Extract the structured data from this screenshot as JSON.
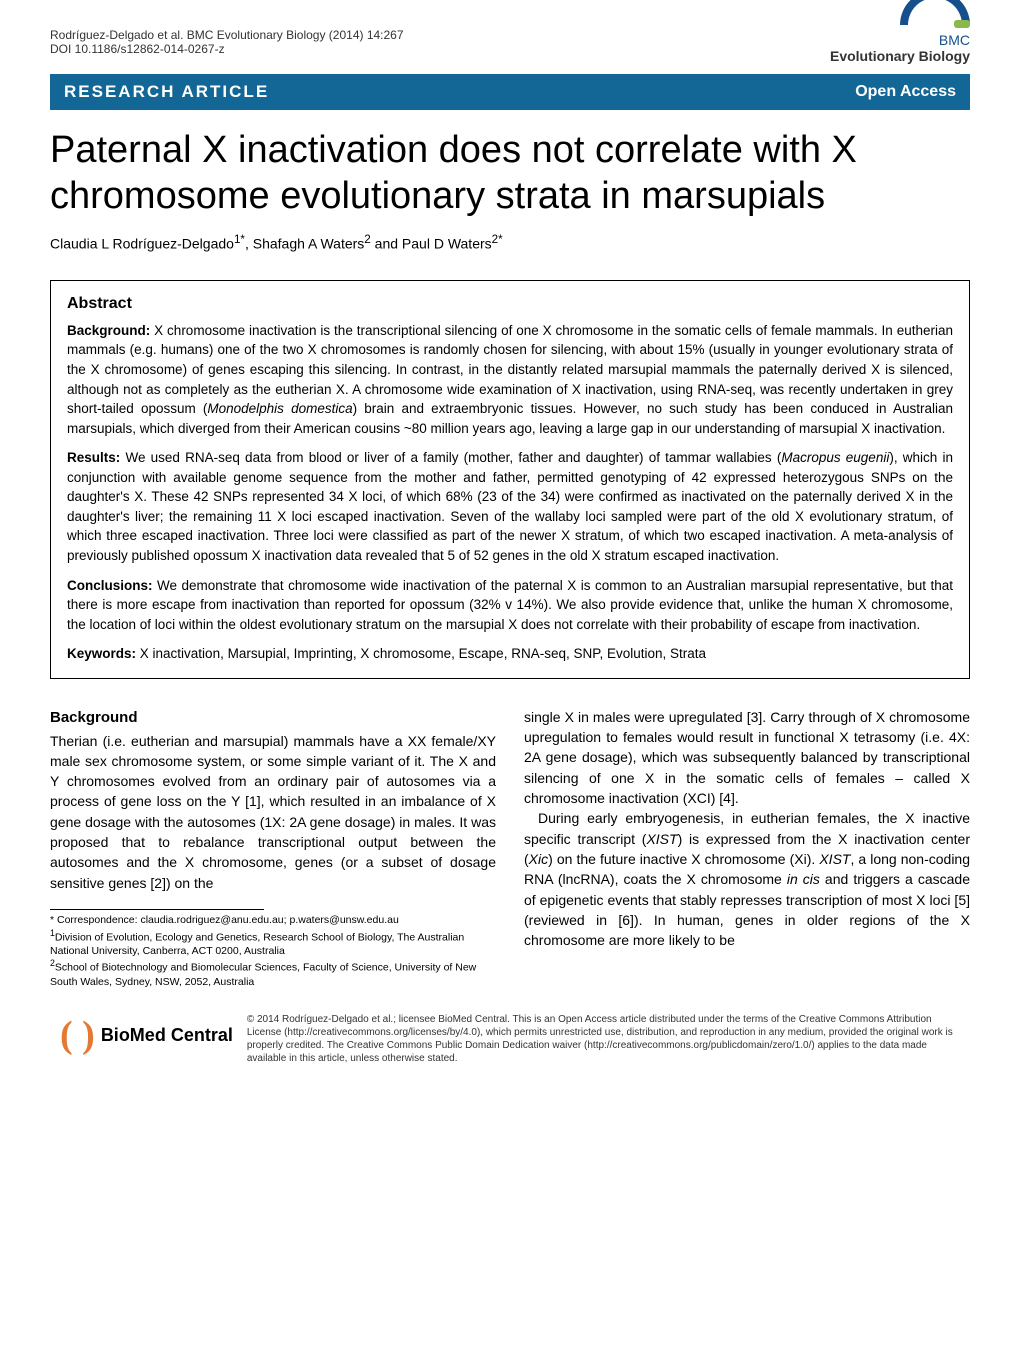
{
  "header": {
    "citation": "Rodríguez-Delgado et al. BMC Evolutionary Biology (2014) 14:267",
    "doi": "DOI 10.1186/s12862-014-0267-z",
    "journal_logo_prefix": "BMC",
    "journal_logo_name": "Evolutionary Biology"
  },
  "bar": {
    "left": "RESEARCH ARTICLE",
    "right": "Open Access"
  },
  "title": "Paternal X inactivation does not correlate with X chromosome evolutionary strata in marsupials",
  "authors_html": "Claudia L Rodríguez-Delgado<sup>1*</sup>, Shafagh A Waters<sup>2</sup> and Paul D Waters<sup>2*</sup>",
  "abstract": {
    "heading": "Abstract",
    "background_label": "Background:",
    "background_text": " X chromosome inactivation is the transcriptional silencing of one X chromosome in the somatic cells of female mammals. In eutherian mammals (e.g. humans) one of the two X chromosomes is randomly chosen for silencing, with about 15% (usually in younger evolutionary strata of the X chromosome) of genes escaping this silencing. In contrast, in the distantly related marsupial mammals the paternally derived X is silenced, although not as completely as the eutherian X. A chromosome wide examination of X inactivation, using RNA-seq, was recently undertaken in grey short-tailed opossum (Monodelphis domestica) brain and extraembryonic tissues. However, no such study has been conduced in Australian marsupials, which diverged from their American cousins ~80 million years ago, leaving a large gap in our understanding of marsupial X inactivation.",
    "results_label": "Results:",
    "results_text": " We used RNA-seq data from blood or liver of a family (mother, father and daughter) of tammar wallabies (Macropus eugenii), which in conjunction with available genome sequence from the mother and father, permitted genotyping of 42 expressed heterozygous SNPs on the daughter's X. These 42 SNPs represented 34 X loci, of which 68% (23 of the 34) were confirmed as inactivated on the paternally derived X in the daughter's liver; the remaining 11 X loci escaped inactivation. Seven of the wallaby loci sampled were part of the old X evolutionary stratum, of which three escaped inactivation. Three loci were classified as part of the newer X stratum, of which two escaped inactivation. A meta-analysis of previously published opossum X inactivation data revealed that 5 of 52 genes in the old X stratum escaped inactivation.",
    "conclusions_label": "Conclusions:",
    "conclusions_text": " We demonstrate that chromosome wide inactivation of the paternal X is common to an Australian marsupial representative, but that there is more escape from inactivation than reported for opossum (32% v 14%). We also provide evidence that, unlike the human X chromosome, the location of loci within the oldest evolutionary stratum on the marsupial X does not correlate with their probability of escape from inactivation.",
    "keywords_label": "Keywords:",
    "keywords_text": " X inactivation, Marsupial, Imprinting, X chromosome, Escape, RNA-seq, SNP, Evolution, Strata"
  },
  "body": {
    "background_heading": "Background",
    "left_p1": "Therian (i.e. eutherian and marsupial) mammals have a XX female/XY male sex chromosome system, or some simple variant of it. The X and Y chromosomes evolved from an ordinary pair of autosomes via a process of gene loss on the Y [1], which resulted in an imbalance of X gene dosage with the autosomes (1X: 2A gene dosage) in males. It was proposed that to rebalance transcriptional output between the autosomes and the X chromosome, genes (or a subset of dosage sensitive genes [2]) on the",
    "right_p1": "single X in males were upregulated [3]. Carry through of X chromosome upregulation to females would result in functional X tetrasomy (i.e. 4X: 2A gene dosage), which was subsequently balanced by transcriptional silencing of one X in the somatic cells of females – called X chromosome inactivation (XCI) [4].",
    "right_p2": "During early embryogenesis, in eutherian females, the X inactive specific transcript (XIST) is expressed from the X inactivation center (Xic) on the future inactive X chromosome (Xi). XIST, a long non-coding RNA (lncRNA), coats the X chromosome in cis and triggers a cascade of epigenetic events that stably represses transcription of most X loci [5] (reviewed in [6]). In human, genes in older regions of the X chromosome are more likely to be"
  },
  "correspondence": {
    "line1": "* Correspondence: claudia.rodriguez@anu.edu.au; p.waters@unsw.edu.au",
    "line2": "1Division of Evolution, Ecology and Genetics, Research School of Biology, The Australian National University, Canberra, ACT 0200, Australia",
    "line3": "2School of Biotechnology and Biomolecular Sciences, Faculty of Science, University of New South Wales, Sydney, NSW, 2052, Australia"
  },
  "footer": {
    "logo_text": "BioMed Central",
    "license": "© 2014 Rodríguez-Delgado et al.; licensee BioMed Central. This is an Open Access article distributed under the terms of the Creative Commons Attribution License (http://creativecommons.org/licenses/by/4.0), which permits unrestricted use, distribution, and reproduction in any medium, provided the original work is properly credited. The Creative Commons Public Domain Dedication waiver (http://creativecommons.org/publicdomain/zero/1.0/) applies to the data made available in this article, unless otherwise stated."
  },
  "colors": {
    "bar_bg": "#136796",
    "bmc_blue": "#16508c",
    "bmc_green": "#89b94a",
    "footer_orange": "#e37933"
  }
}
